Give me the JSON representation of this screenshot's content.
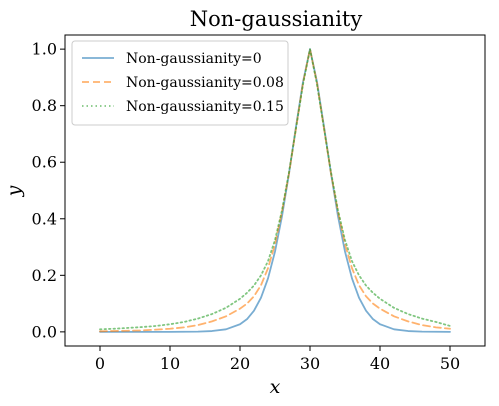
{
  "chart_data": {
    "type": "line",
    "title": "Non-gaussianity",
    "xlabel": "x",
    "ylabel": "y",
    "xlim": [
      -5,
      55
    ],
    "ylim": [
      -0.05,
      1.05
    ],
    "xticks": [
      0,
      10,
      20,
      30,
      40,
      50
    ],
    "yticks": [
      0.0,
      0.2,
      0.4,
      0.6,
      0.8,
      1.0
    ],
    "xtick_labels": [
      "0",
      "10",
      "20",
      "30",
      "40",
      "50"
    ],
    "ytick_labels": [
      "0.0",
      "0.2",
      "0.4",
      "0.6",
      "0.8",
      "1.0"
    ],
    "grid": false,
    "legend_position": "top-left",
    "x": [
      0,
      2,
      4,
      6,
      8,
      10,
      12,
      14,
      16,
      18,
      20,
      21,
      22,
      23,
      24,
      25,
      26,
      27,
      28,
      29,
      30,
      31,
      32,
      33,
      34,
      35,
      36,
      37,
      38,
      39,
      40,
      42,
      44,
      46,
      48,
      50
    ],
    "series": [
      {
        "name": "Non-gaussianity=0",
        "color": "#1f77b4",
        "dash": "solid",
        "values": [
          0,
          0,
          0,
          0,
          0,
          0.0001,
          0.0003,
          0.0009,
          0.0029,
          0.009,
          0.027,
          0.045,
          0.075,
          0.121,
          0.189,
          0.284,
          0.409,
          0.56,
          0.726,
          0.884,
          1.0,
          0.884,
          0.726,
          0.56,
          0.409,
          0.284,
          0.189,
          0.121,
          0.075,
          0.045,
          0.027,
          0.009,
          0.0029,
          0.0009,
          0.0003,
          0.0001
        ]
      },
      {
        "name": "Non-gaussianity=0.08",
        "color": "#ff7f0e",
        "dash": "dashed",
        "values": [
          0.002,
          0.003,
          0.004,
          0.005,
          0.008,
          0.011,
          0.016,
          0.024,
          0.037,
          0.055,
          0.082,
          0.1,
          0.126,
          0.165,
          0.225,
          0.31,
          0.425,
          0.56,
          0.72,
          0.88,
          1.0,
          0.88,
          0.72,
          0.56,
          0.425,
          0.31,
          0.225,
          0.165,
          0.126,
          0.1,
          0.082,
          0.055,
          0.037,
          0.024,
          0.016,
          0.011
        ]
      },
      {
        "name": "Non-gaussianity=0.15",
        "color": "#2ca02c",
        "dash": "dotted",
        "values": [
          0.009,
          0.011,
          0.014,
          0.017,
          0.021,
          0.027,
          0.035,
          0.047,
          0.063,
          0.085,
          0.117,
          0.138,
          0.164,
          0.2,
          0.25,
          0.325,
          0.43,
          0.565,
          0.72,
          0.875,
          1.0,
          0.875,
          0.72,
          0.565,
          0.43,
          0.325,
          0.25,
          0.2,
          0.164,
          0.138,
          0.117,
          0.085,
          0.063,
          0.047,
          0.035,
          0.021
        ]
      }
    ]
  }
}
